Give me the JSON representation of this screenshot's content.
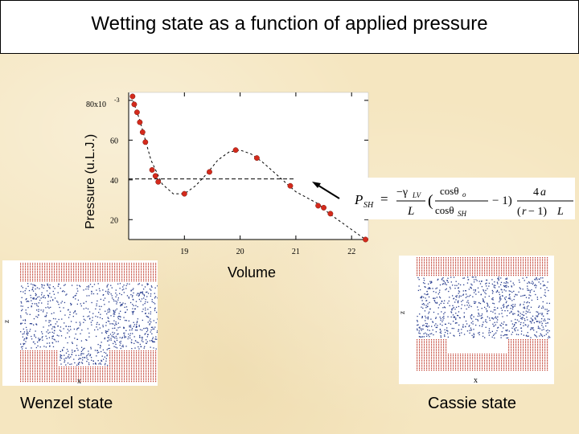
{
  "slide": {
    "title": "Wetting state as a function of applied pressure"
  },
  "chart_data": {
    "type": "scatter",
    "title": "",
    "xlabel": "Volume",
    "ylabel": "Pressure (u.L.J.)",
    "xlim": [
      18.0,
      22.3
    ],
    "ylim": [
      10,
      84
    ],
    "y_scale_label": "80x10",
    "y_scale_exponent": "-3",
    "x_ticks": [
      19,
      20,
      21,
      22
    ],
    "y_ticks": [
      20,
      40,
      60,
      80
    ],
    "y_tick_labels": [
      "20",
      "40",
      "60",
      ""
    ],
    "reference_line_y": 40.5,
    "series": [
      {
        "marker_color": "#d42a1c",
        "points": [
          {
            "x": 18.07,
            "y": 82
          },
          {
            "x": 18.1,
            "y": 78
          },
          {
            "x": 18.15,
            "y": 74
          },
          {
            "x": 18.2,
            "y": 69
          },
          {
            "x": 18.25,
            "y": 64
          },
          {
            "x": 18.3,
            "y": 59
          },
          {
            "x": 18.42,
            "y": 45
          },
          {
            "x": 18.48,
            "y": 42
          },
          {
            "x": 18.53,
            "y": 39
          },
          {
            "x": 19.0,
            "y": 33
          },
          {
            "x": 19.45,
            "y": 44
          },
          {
            "x": 19.92,
            "y": 55
          },
          {
            "x": 20.3,
            "y": 51
          },
          {
            "x": 20.9,
            "y": 37
          },
          {
            "x": 21.4,
            "y": 27
          },
          {
            "x": 21.5,
            "y": 26
          },
          {
            "x": 21.62,
            "y": 23
          },
          {
            "x": 22.25,
            "y": 10
          }
        ]
      }
    ],
    "fit_curve": [
      {
        "x": 18.05,
        "y": 82
      },
      {
        "x": 18.2,
        "y": 70
      },
      {
        "x": 18.4,
        "y": 50
      },
      {
        "x": 18.6,
        "y": 38
      },
      {
        "x": 18.8,
        "y": 33
      },
      {
        "x": 19.0,
        "y": 33
      },
      {
        "x": 19.2,
        "y": 37
      },
      {
        "x": 19.4,
        "y": 43
      },
      {
        "x": 19.6,
        "y": 50
      },
      {
        "x": 19.8,
        "y": 54
      },
      {
        "x": 20.0,
        "y": 55
      },
      {
        "x": 20.2,
        "y": 53
      },
      {
        "x": 20.4,
        "y": 49
      },
      {
        "x": 20.6,
        "y": 44
      },
      {
        "x": 20.8,
        "y": 39
      },
      {
        "x": 21.0,
        "y": 34
      },
      {
        "x": 21.2,
        "y": 31
      },
      {
        "x": 21.4,
        "y": 28
      },
      {
        "x": 21.6,
        "y": 23
      },
      {
        "x": 21.8,
        "y": 19
      },
      {
        "x": 22.0,
        "y": 15
      },
      {
        "x": 22.25,
        "y": 10
      }
    ]
  },
  "formula": {
    "color": "#000000"
  },
  "panels": {
    "wenzel": {
      "label": "Wenzel state",
      "x_axis": "x",
      "z_axis": "z"
    },
    "cassie": {
      "label": "Cassie state",
      "x_axis": "x",
      "z_axis": "z"
    },
    "wall_color": "#c0392b",
    "liquid_color": "#2a3f8f"
  }
}
